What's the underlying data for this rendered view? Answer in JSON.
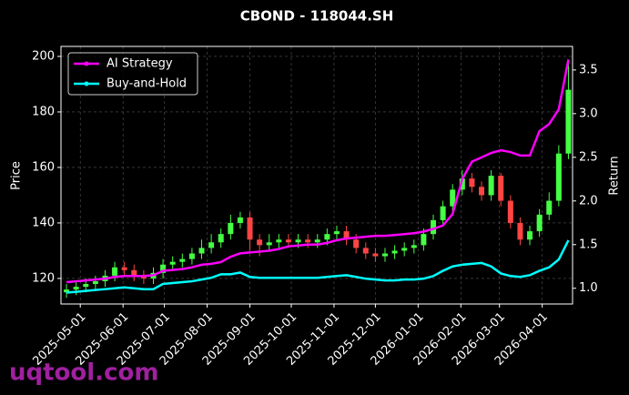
{
  "chart_data": {
    "type": "candlestick",
    "title": "CBOND - 118044.SH",
    "y_label": "Price",
    "y2_label": "Return",
    "watermark": "uqtool.com",
    "x": [
      "2025-04-21",
      "2025-04-28",
      "2025-05-05",
      "2025-05-12",
      "2025-05-19",
      "2025-05-26",
      "2025-06-02",
      "2025-06-09",
      "2025-06-16",
      "2025-06-23",
      "2025-06-30",
      "2025-07-07",
      "2025-07-14",
      "2025-07-21",
      "2025-07-28",
      "2025-08-04",
      "2025-08-11",
      "2025-08-18",
      "2025-08-25",
      "2025-09-01",
      "2025-09-08",
      "2025-09-15",
      "2025-09-22",
      "2025-09-29",
      "2025-10-06",
      "2025-10-13",
      "2025-10-20",
      "2025-10-27",
      "2025-11-03",
      "2025-11-10",
      "2025-11-17",
      "2025-11-24",
      "2025-12-01",
      "2025-12-08",
      "2025-12-15",
      "2025-12-22",
      "2025-12-29",
      "2026-01-05",
      "2026-01-12",
      "2026-01-19",
      "2026-01-26",
      "2026-02-02",
      "2026-02-09",
      "2026-02-16",
      "2026-02-23",
      "2026-03-02",
      "2026-03-09",
      "2026-03-16",
      "2026-03-23",
      "2026-03-30",
      "2026-04-06",
      "2026-04-13",
      "2026-04-20"
    ],
    "candles": {
      "open": [
        115,
        116,
        117,
        118,
        119,
        121,
        124,
        123,
        121,
        120,
        122,
        125,
        126,
        127,
        129,
        131,
        133,
        136,
        140,
        142,
        134,
        132,
        133,
        134,
        133,
        134,
        133,
        134,
        136,
        137,
        134,
        131,
        129,
        128,
        129,
        130,
        131,
        132,
        136,
        141,
        146,
        152,
        156,
        153,
        150,
        157,
        148,
        140,
        134,
        137,
        143,
        148,
        165
      ],
      "high": [
        118,
        119,
        120,
        121,
        123,
        126,
        126,
        125,
        123,
        124,
        127,
        128,
        129,
        131,
        134,
        136,
        138,
        143,
        144,
        144,
        136,
        136,
        136,
        136,
        136,
        136,
        136,
        138,
        139,
        139,
        136,
        133,
        131,
        131,
        132,
        133,
        134,
        138,
        143,
        148,
        154,
        159,
        158,
        155,
        159,
        158,
        150,
        142,
        139,
        145,
        151,
        168,
        198
      ],
      "low": [
        113,
        114,
        115,
        116,
        117,
        119,
        121,
        119,
        118,
        118,
        120,
        123,
        124,
        125,
        127,
        129,
        131,
        134,
        138,
        130,
        128,
        130,
        131,
        131,
        131,
        131,
        131,
        132,
        134,
        132,
        129,
        127,
        126,
        126,
        127,
        128,
        129,
        130,
        134,
        139,
        144,
        150,
        151,
        148,
        148,
        146,
        138,
        132,
        132,
        135,
        141,
        146,
        163
      ],
      "close": [
        116,
        117,
        118,
        119,
        121,
        124,
        123,
        121,
        120,
        122,
        125,
        126,
        127,
        129,
        131,
        133,
        136,
        140,
        142,
        134,
        132,
        133,
        134,
        133,
        134,
        133,
        134,
        136,
        137,
        134,
        131,
        129,
        128,
        129,
        130,
        131,
        132,
        136,
        141,
        146,
        152,
        156,
        153,
        150,
        157,
        148,
        140,
        134,
        137,
        143,
        148,
        165,
        188
      ],
      "up_color": "#44ff44",
      "down_color": "#ff4444"
    },
    "series": [
      {
        "name": "AI Strategy",
        "color": "#ff00ff",
        "axis": "y2",
        "values": [
          1.07,
          1.08,
          1.09,
          1.1,
          1.11,
          1.13,
          1.14,
          1.14,
          1.14,
          1.15,
          1.2,
          1.21,
          1.22,
          1.24,
          1.27,
          1.28,
          1.3,
          1.36,
          1.4,
          1.41,
          1.42,
          1.43,
          1.45,
          1.48,
          1.49,
          1.5,
          1.5,
          1.52,
          1.55,
          1.57,
          1.58,
          1.59,
          1.6,
          1.6,
          1.61,
          1.62,
          1.63,
          1.65,
          1.68,
          1.72,
          1.85,
          2.25,
          2.45,
          2.5,
          2.55,
          2.58,
          2.56,
          2.52,
          2.52,
          2.8,
          2.88,
          3.05,
          3.62
        ]
      },
      {
        "name": "Buy-and-Hold",
        "color": "#00ffff",
        "axis": "y2",
        "values": [
          0.95,
          0.96,
          0.97,
          0.98,
          0.99,
          1.0,
          1.01,
          1.0,
          0.99,
          0.99,
          1.05,
          1.06,
          1.07,
          1.08,
          1.1,
          1.12,
          1.16,
          1.16,
          1.18,
          1.13,
          1.12,
          1.12,
          1.12,
          1.12,
          1.12,
          1.12,
          1.12,
          1.13,
          1.14,
          1.15,
          1.13,
          1.11,
          1.1,
          1.09,
          1.09,
          1.1,
          1.1,
          1.11,
          1.14,
          1.2,
          1.25,
          1.27,
          1.28,
          1.29,
          1.25,
          1.17,
          1.14,
          1.13,
          1.15,
          1.2,
          1.24,
          1.33,
          1.55
        ]
      }
    ],
    "xlim": [
      "2025-04-17",
      "2026-04-23"
    ],
    "xticks": [
      "2025-05-01",
      "2025-06-01",
      "2025-07-01",
      "2025-08-01",
      "2025-09-01",
      "2025-10-01",
      "2025-11-01",
      "2025-12-01",
      "2026-01-01",
      "2026-02-01",
      "2026-03-01",
      "2026-04-01"
    ],
    "ylim": [
      110.8,
      203.6
    ],
    "yticks": [
      120,
      140,
      160,
      180,
      200
    ],
    "y2lim": [
      0.82,
      3.77
    ],
    "y2ticks": [
      {
        "value": 1,
        "label": "1.0"
      },
      1.5,
      {
        "value": 2,
        "label": "2.0"
      },
      2.5,
      {
        "value": 3,
        "label": "3.0"
      },
      3.5
    ],
    "grid": true,
    "legend": "upper left"
  }
}
